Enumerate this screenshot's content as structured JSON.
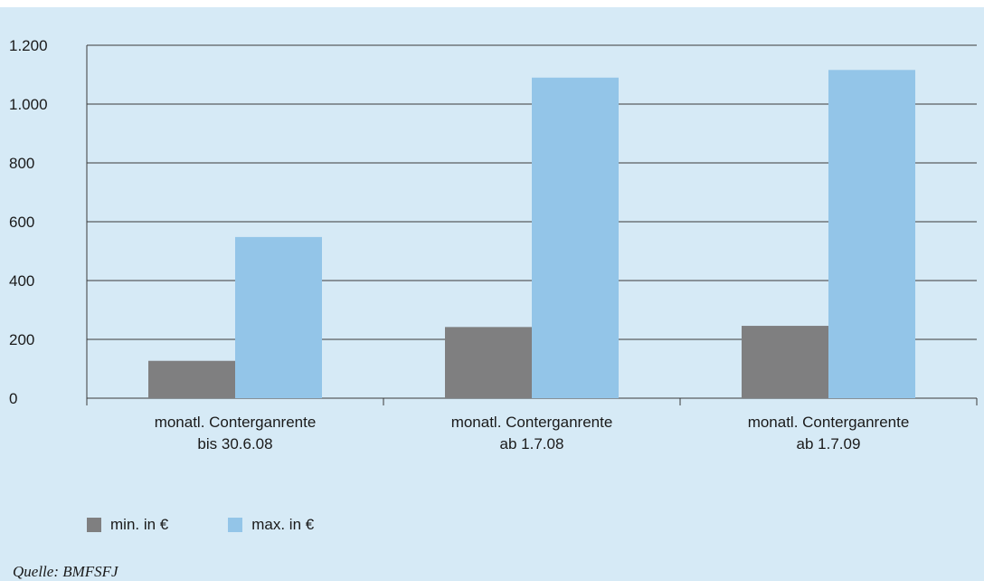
{
  "colors": {
    "min": "#7f7f80",
    "max": "#93c5e8",
    "background": "#d6eaf6"
  },
  "legend": {
    "min_label": "min. in €",
    "max_label": "max. in €",
    "placement": "bottom-left"
  },
  "source": "Quelle: BMFSFJ",
  "chart_data": {
    "type": "bar",
    "title": "",
    "xlabel": "",
    "ylabel": "",
    "ylim": [
      0,
      1200
    ],
    "yticks": [
      0,
      200,
      400,
      600,
      800,
      1000,
      1200
    ],
    "ytick_labels": [
      "0",
      "200",
      "400",
      "600",
      "800",
      "1.000",
      "1.200"
    ],
    "grid": true,
    "categories": [
      [
        "monatl. Conterganrente",
        "bis 30.6.08"
      ],
      [
        "monatl. Conterganrente",
        "ab 1.7.08"
      ],
      [
        "monatl. Conterganrente",
        "ab 1.7.09"
      ]
    ],
    "series": [
      {
        "name": "min. in €",
        "values": [
          127,
          242,
          246
        ]
      },
      {
        "name": "max. in €",
        "values": [
          548,
          1090,
          1116
        ]
      }
    ]
  }
}
